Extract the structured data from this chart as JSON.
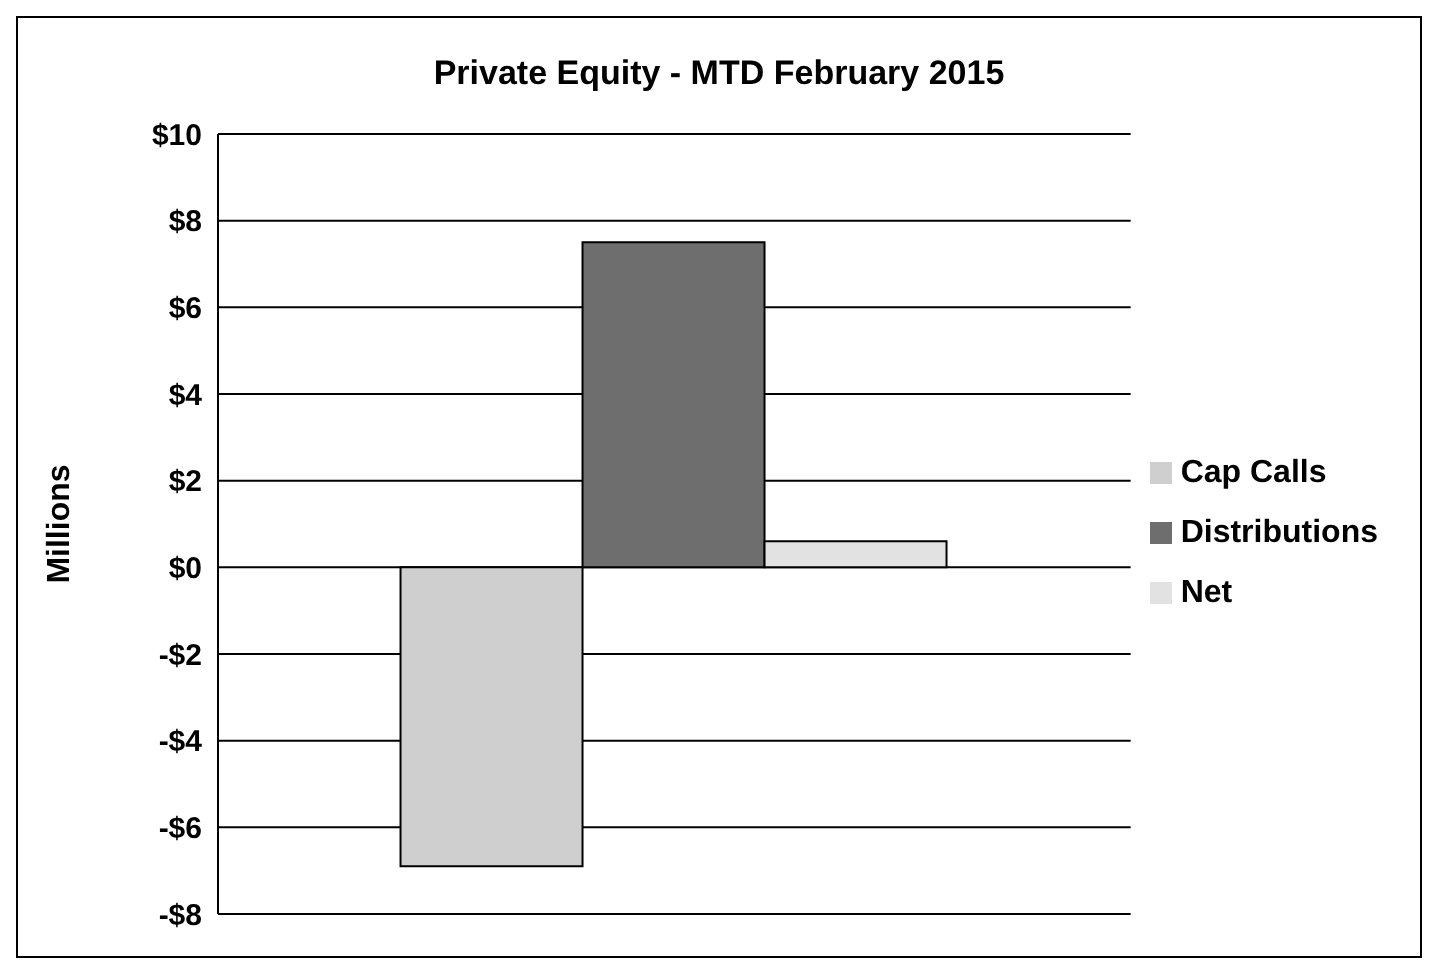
{
  "chart_data": {
    "type": "bar",
    "title": "Private Equity - MTD February 2015",
    "ylabel": "Millions",
    "categories": [
      null
    ],
    "series": [
      {
        "name": "Cap Calls",
        "color": "#cfcfcf",
        "values": [
          -6.9
        ]
      },
      {
        "name": "Distributions",
        "color": "#6e6e6e",
        "values": [
          7.5
        ]
      },
      {
        "name": "Net",
        "color": "#e2e2e2",
        "values": [
          0.6
        ]
      }
    ],
    "ylim": [
      -8,
      10
    ],
    "yticks": [
      {
        "value": -8,
        "label": "-$8"
      },
      {
        "value": -6,
        "label": "-$6"
      },
      {
        "value": -4,
        "label": "-$4"
      },
      {
        "value": -2,
        "label": "-$2"
      },
      {
        "value": 0,
        "label": "$0"
      },
      {
        "value": 2,
        "label": "$2"
      },
      {
        "value": 4,
        "label": "$4"
      },
      {
        "value": 6,
        "label": "$6"
      },
      {
        "value": 8,
        "label": "$8"
      },
      {
        "value": 10,
        "label": "$10"
      }
    ],
    "grid": "y",
    "legend": "right",
    "tick_labels": "y"
  }
}
